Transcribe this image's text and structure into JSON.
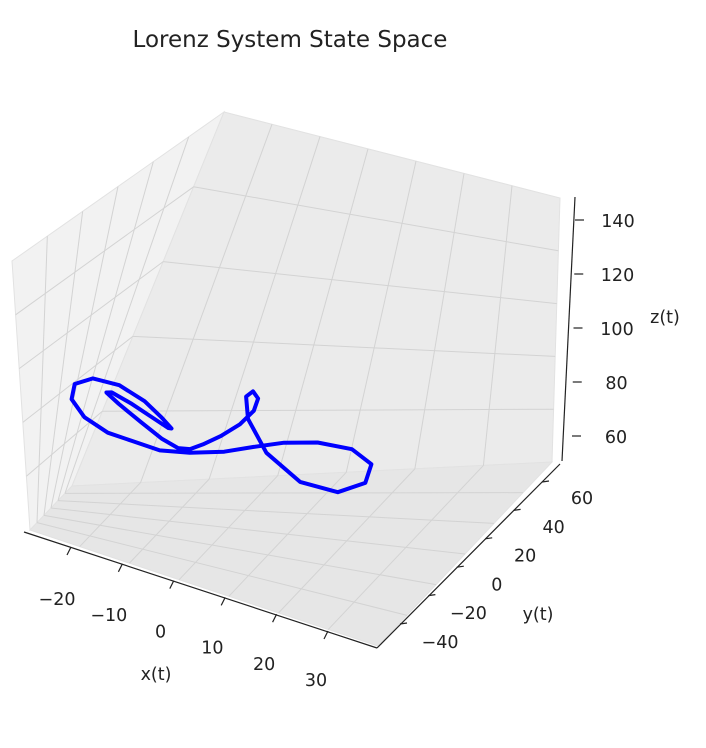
{
  "chart_data": {
    "type": "line",
    "projection": "3d",
    "title": "Lorenz System State Space",
    "xlabel": "x(t)",
    "ylabel": "y(t)",
    "zlabel": "z(t)",
    "xlim": [
      -30,
      36
    ],
    "ylim": [
      -45,
      65
    ],
    "zlim": [
      50,
      145
    ],
    "x_ticks": [
      "−20",
      "−10",
      "0",
      "10",
      "20",
      "30"
    ],
    "y_ticks": [
      "−40",
      "−20",
      "0",
      "20",
      "40",
      "60"
    ],
    "z_ticks": [
      "60",
      "80",
      "100",
      "120",
      "140"
    ],
    "grid": true,
    "series": [
      {
        "color": "#0000ff",
        "x": [
          -9.8,
          -14.9,
          -20.4,
          -24.0,
          -24.3,
          -21.1,
          -15.6,
          -9.9,
          -5.7,
          -3.4,
          -4.4,
          -8.3,
          -13.2,
          -17.0,
          -17.5,
          -14.2,
          -9.1,
          -4.4,
          -1.0,
          1.3,
          3.5,
          6.4,
          9.1,
          10.6,
          10.3,
          8.5,
          6.7,
          6.8,
          10.1,
          16.4,
          23.7,
          29.5,
          31.8,
          29.6,
          24.5,
          19.0,
          13.6,
          8.0,
          1.4,
          -4.4
        ],
        "y": [
          -35.8,
          -29.1,
          -14.6,
          2.6,
          16.5,
          21.4,
          15.7,
          2.9,
          -10.6,
          -17.7,
          -13.0,
          -1.1,
          10.3,
          13.6,
          6.7,
          -6.1,
          -19.6,
          -29.8,
          -34.9,
          -35.0,
          -30.6,
          -21.4,
          -7.4,
          10.1,
          26.3,
          37.7,
          42.7,
          42.5,
          40.4,
          38.5,
          37.0,
          32.7,
          21.6,
          4.0,
          -14.3,
          -27.1,
          -33.7,
          -36.2,
          -37.3,
          -37.2
        ],
        "z": [
          92.7,
          91.5,
          91.5,
          93.2,
          96.4,
          99.7,
          101.5,
          101.2,
          99.9,
          98.5,
          97.4,
          97.0,
          97.4,
          98.4,
          99.0,
          98.8,
          97.5,
          95.9,
          95.5,
          96.6,
          99.0,
          102.5,
          106.3,
          109.5,
          111.4,
          111.2,
          107.5,
          99.7,
          90.1,
          84.0,
          85.1,
          92.6,
          102.2,
          108.6,
          110.4,
          108.7,
          104.8,
          100.0,
          95.7,
          92.9
        ]
      }
    ]
  }
}
